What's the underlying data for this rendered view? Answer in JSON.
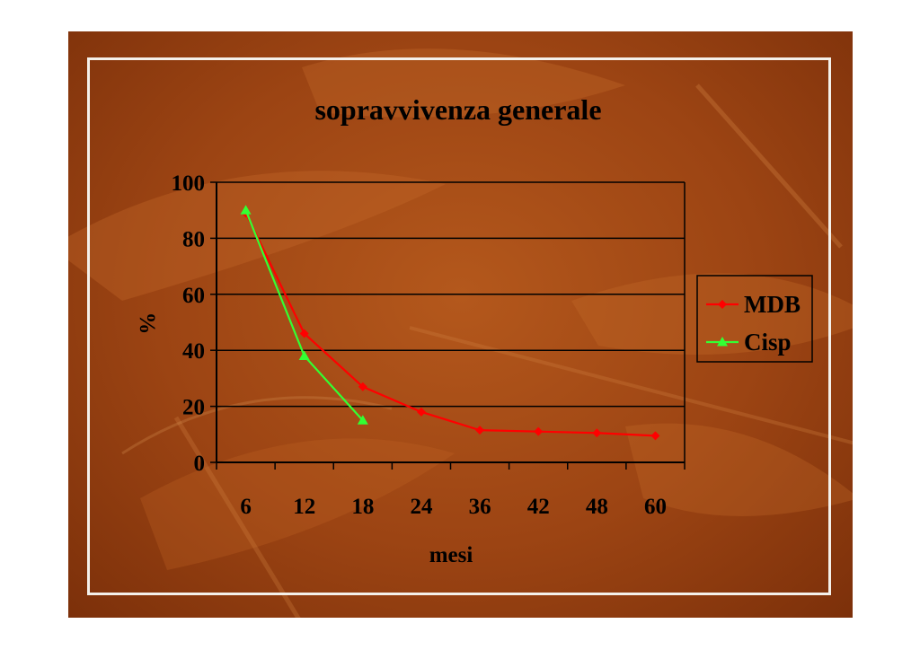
{
  "chart_data": {
    "type": "line",
    "title": "sopravvivenza generale",
    "xlabel": "mesi",
    "ylabel": "%",
    "categories": [
      "6",
      "12",
      "18",
      "24",
      "36",
      "42",
      "48",
      "60"
    ],
    "ylim": [
      0,
      100
    ],
    "yticks": [
      "0",
      "20",
      "40",
      "60",
      "80",
      "100"
    ],
    "grid": true,
    "legend_position": "right",
    "series": [
      {
        "name": "MDB",
        "color": "#ff0000",
        "marker": "diamond",
        "values": [
          89,
          46,
          27,
          18,
          11.5,
          11,
          10.5,
          9.5
        ]
      },
      {
        "name": "Cisp",
        "color": "#33ff33",
        "marker": "triangle",
        "values": [
          90,
          38,
          15,
          null,
          null,
          null,
          null,
          null
        ]
      }
    ]
  }
}
